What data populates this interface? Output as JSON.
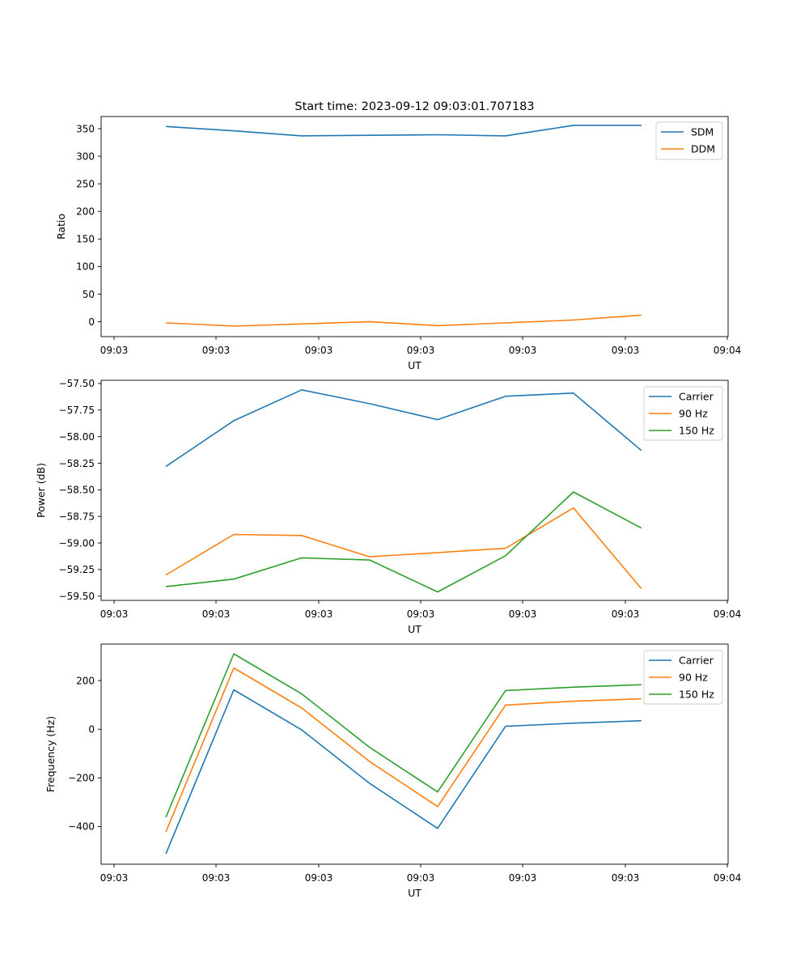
{
  "chart_data": [
    {
      "type": "line",
      "title": "Start time: 2023-09-12 09:03:01.707183",
      "xlabel": "UT",
      "ylabel": "Ratio",
      "x_tick_labels": [
        "09:03",
        "09:03",
        "09:03",
        "09:03",
        "09:03",
        "09:03",
        "09:04"
      ],
      "y_ticks": [
        0,
        50,
        100,
        150,
        200,
        250,
        300,
        350
      ],
      "y_tick_labels": [
        "0",
        "50",
        "100",
        "150",
        "200",
        "250",
        "300",
        "350"
      ],
      "ylim": [
        -27,
        372
      ],
      "x_index": [
        0.5,
        1.15,
        1.8,
        2.45,
        3.1,
        3.75,
        4.4,
        5.05
      ],
      "xlim": [
        -0.12,
        5.88
      ],
      "series": [
        {
          "name": "SDM",
          "color": "#1f77b4",
          "values": [
            354,
            346,
            337,
            338,
            339,
            337,
            356,
            356
          ]
        },
        {
          "name": "DDM",
          "color": "#ff7f0e",
          "values": [
            -2,
            -8,
            -4,
            0,
            -7,
            -2,
            3,
            12
          ]
        }
      ],
      "legend": "upper right"
    },
    {
      "type": "line",
      "title": "",
      "xlabel": "UT",
      "ylabel": "Power (dB)",
      "x_tick_labels": [
        "09:03",
        "09:03",
        "09:03",
        "09:03",
        "09:03",
        "09:03",
        "09:04"
      ],
      "y_ticks": [
        -57.5,
        -57.75,
        -58.0,
        -58.25,
        -58.5,
        -58.75,
        -59.0,
        -59.25,
        -59.5
      ],
      "y_tick_labels": [
        "−57.50",
        "−57.75",
        "−58.00",
        "−58.25",
        "−58.50",
        "−58.75",
        "−59.00",
        "−59.25",
        "−59.50"
      ],
      "ylim": [
        -59.54,
        -57.47
      ],
      "x_index": [
        0.5,
        1.15,
        1.8,
        2.45,
        3.1,
        3.75,
        4.4,
        5.05
      ],
      "xlim": [
        -0.12,
        5.88
      ],
      "series": [
        {
          "name": "Carrier",
          "color": "#1f77b4",
          "values": [
            -58.28,
            -57.85,
            -57.56,
            -57.69,
            -57.84,
            -57.62,
            -57.59,
            -58.13
          ]
        },
        {
          "name": "90 Hz",
          "color": "#ff7f0e",
          "values": [
            -59.3,
            -58.92,
            -58.93,
            -59.13,
            -59.09,
            -59.05,
            -58.67,
            -59.43
          ]
        },
        {
          "name": "150 Hz",
          "color": "#2ca02c",
          "values": [
            -59.41,
            -59.34,
            -59.14,
            -59.16,
            -59.46,
            -59.12,
            -58.52,
            -58.86
          ]
        }
      ],
      "legend": "upper right"
    },
    {
      "type": "line",
      "title": "",
      "xlabel": "UT",
      "ylabel": "Frequency (Hz)",
      "x_tick_labels": [
        "09:03",
        "09:03",
        "09:03",
        "09:03",
        "09:03",
        "09:03",
        "09:04"
      ],
      "y_ticks": [
        -400,
        -200,
        0,
        200
      ],
      "y_tick_labels": [
        "−400",
        "−200",
        "0",
        "200"
      ],
      "ylim": [
        -555,
        350
      ],
      "x_index": [
        0.5,
        1.15,
        1.8,
        2.45,
        3.1,
        3.75,
        4.4,
        5.05
      ],
      "xlim": [
        -0.12,
        5.88
      ],
      "series": [
        {
          "name": "Carrier",
          "color": "#1f77b4",
          "values": [
            -512,
            162,
            -3,
            -223,
            -408,
            12,
            25,
            35
          ]
        },
        {
          "name": "90 Hz",
          "color": "#ff7f0e",
          "values": [
            -422,
            252,
            87,
            -133,
            -318,
            99,
            115,
            125
          ]
        },
        {
          "name": "150 Hz",
          "color": "#2ca02c",
          "values": [
            -362,
            310,
            145,
            -75,
            -258,
            159,
            173,
            183
          ]
        }
      ],
      "legend": "upper right"
    }
  ]
}
